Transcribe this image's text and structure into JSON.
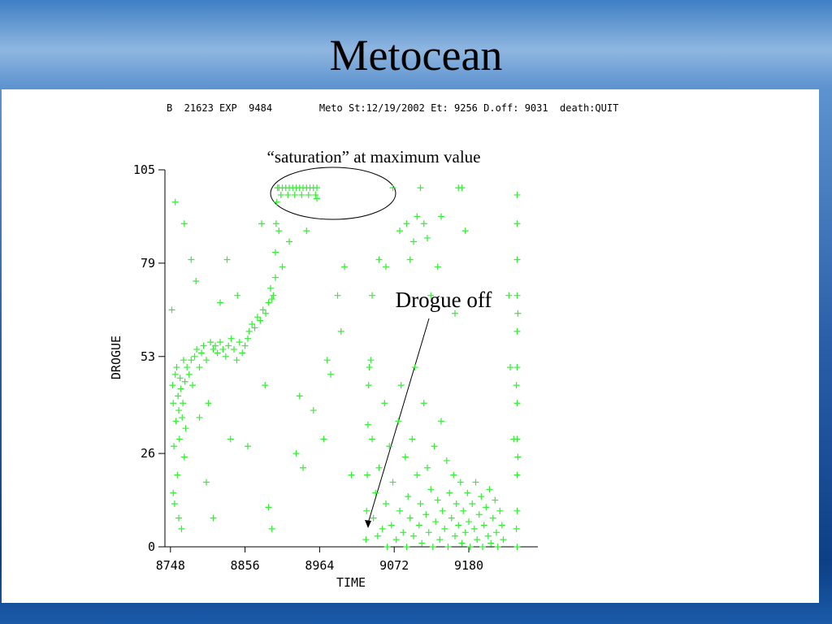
{
  "chart_data": {
    "type": "scatter",
    "title": "Metocean",
    "header": "B  21623 EXP  9484        Meto St:12/19/2002 Et: 9256 D.off: 9031  death:QUIT",
    "annotations": [
      "“saturation” at maximum value",
      "Drogue off"
    ],
    "xlabel": "TIME",
    "ylabel": "DROGUE",
    "xlim": [
      8740,
      9280
    ],
    "xticks": [
      8748,
      8856,
      8964,
      9072,
      9180
    ],
    "ylim": [
      0,
      105
    ],
    "yticks": [
      0,
      26,
      53,
      79,
      105
    ],
    "color": "#33ee33",
    "x": [
      8750,
      8751,
      8752,
      8752,
      8753,
      8754,
      8755,
      8756,
      8757,
      8758,
      8759,
      8760,
      8760,
      8761,
      8762,
      8763,
      8764,
      8765,
      8766,
      8767,
      8768,
      8769,
      8770,
      8772,
      8775,
      8778,
      8780,
      8783,
      8786,
      8790,
      8793,
      8796,
      8800,
      8803,
      8806,
      8810,
      8813,
      8816,
      8820,
      8824,
      8828,
      8832,
      8836,
      8840,
      8844,
      8848,
      8852,
      8856,
      8860,
      8755,
      8768,
      8778,
      8785,
      8790,
      8800,
      8810,
      8830,
      8835,
      8820,
      8845,
      8860,
      8862,
      8866,
      8870,
      8874,
      8878,
      8882,
      8886,
      8890,
      8893,
      8895,
      8897,
      8900,
      8900,
      8901,
      8902,
      8903,
      8905,
      8910,
      8915,
      8920,
      8925,
      8930,
      8935,
      8940,
      8945,
      8950,
      8955,
      8960,
      8908,
      8918,
      8928,
      8938,
      8948,
      8958,
      8880,
      8885,
      8890,
      8895,
      8905,
      8910,
      8920,
      8930,
      8935,
      8940,
      8945,
      8955,
      8960,
      8970,
      8975,
      8990,
      8995,
      9000,
      9010,
      8980,
      9031,
      9032,
      9033,
      9034,
      9035,
      9036,
      9038,
      9040,
      9042,
      9045,
      9048,
      9050,
      9055,
      9058,
      9060,
      9062,
      9065,
      9068,
      9070,
      9075,
      9078,
      9080,
      9082,
      9085,
      9088,
      9090,
      9092,
      9095,
      9098,
      9100,
      9102,
      9105,
      9108,
      9110,
      9112,
      9115,
      9118,
      9120,
      9122,
      9125,
      9128,
      9130,
      9132,
      9135,
      9138,
      9140,
      9142,
      9145,
      9148,
      9150,
      9152,
      9155,
      9158,
      9160,
      9162,
      9165,
      9168,
      9170,
      9172,
      9175,
      9178,
      9180,
      9182,
      9185,
      9188,
      9190,
      9192,
      9195,
      9198,
      9200,
      9202,
      9205,
      9208,
      9210,
      9212,
      9215,
      9218,
      9220,
      9222,
      9225,
      9228,
      9230,
      9070,
      9080,
      9090,
      9095,
      9100,
      9105,
      9110,
      9115,
      9120,
      9125,
      9135,
      9140,
      9165,
      9170,
      9175,
      9160,
      9060,
      9050,
      9040,
      9250,
      9250,
      9250,
      9250,
      9250,
      9250,
      9250,
      9250,
      9250,
      9250,
      9250,
      9249,
      9249,
      9251,
      9251,
      9240,
      9245,
      9238
    ],
    "values": [
      66,
      45,
      40,
      15,
      28,
      12,
      48,
      35,
      50,
      20,
      42,
      8,
      38,
      30,
      47,
      44,
      5,
      36,
      40,
      52,
      25,
      46,
      33,
      50,
      48,
      52,
      45,
      53,
      55,
      50,
      54,
      56,
      52,
      40,
      57,
      55,
      56,
      54,
      57,
      55,
      53,
      56,
      58,
      55,
      52,
      57,
      54,
      56,
      58,
      96,
      90,
      80,
      74,
      36,
      18,
      8,
      80,
      30,
      68,
      70,
      28,
      60,
      62,
      61,
      64,
      63,
      66,
      65,
      68,
      72,
      69,
      70,
      75,
      82,
      90,
      96,
      100,
      100,
      100,
      100,
      100,
      100,
      100,
      100,
      100,
      100,
      100,
      100,
      100,
      98,
      98,
      98,
      98,
      98,
      98,
      90,
      45,
      11,
      5,
      88,
      78,
      85,
      26,
      42,
      22,
      88,
      38,
      97,
      30,
      52,
      70,
      60,
      78,
      20,
      48,
      2,
      10,
      20,
      34,
      45,
      50,
      52,
      30,
      8,
      15,
      3,
      22,
      5,
      40,
      12,
      0,
      28,
      6,
      18,
      2,
      35,
      10,
      45,
      4,
      25,
      0,
      14,
      8,
      30,
      3,
      50,
      20,
      6,
      12,
      1,
      40,
      9,
      22,
      4,
      16,
      0,
      28,
      7,
      13,
      2,
      35,
      10,
      5,
      24,
      0,
      15,
      8,
      20,
      3,
      12,
      6,
      18,
      1,
      10,
      4,
      15,
      7,
      0,
      12,
      5,
      18,
      2,
      9,
      14,
      0,
      6,
      11,
      3,
      16,
      1,
      8,
      13,
      4,
      0,
      10,
      6,
      2,
      100,
      88,
      90,
      80,
      85,
      92,
      100,
      90,
      86,
      70,
      78,
      92,
      100,
      100,
      88,
      65,
      78,
      80,
      70,
      0,
      10,
      20,
      30,
      40,
      50,
      60,
      70,
      80,
      90,
      98,
      5,
      45,
      25,
      65,
      50,
      30,
      70
    ]
  }
}
